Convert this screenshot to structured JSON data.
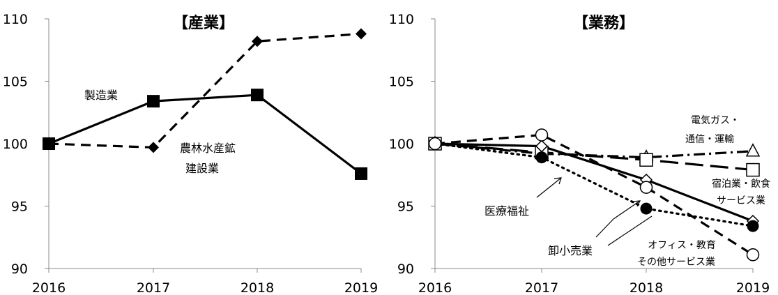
{
  "chart_data": [
    {
      "type": "line",
      "title": "【産業】",
      "categories": [
        "2016",
        "2017",
        "2018",
        "2019"
      ],
      "ylim": [
        90,
        110
      ],
      "yticks": [
        "90",
        "95",
        "100",
        "105",
        "110"
      ],
      "grid": false,
      "series": [
        {
          "name": "製造業",
          "values": [
            100,
            103.4,
            103.9,
            97.6
          ],
          "style": "solid",
          "marker": "square"
        },
        {
          "name": "農林水産鉱",
          "name2": "建設業",
          "values": [
            100,
            99.7,
            108.2,
            108.8
          ],
          "style": "dashed",
          "marker": "diamond"
        }
      ]
    },
    {
      "type": "line",
      "title": "【業務】",
      "categories": [
        "2016",
        "2017",
        "2018",
        "2019"
      ],
      "ylim": [
        90,
        110
      ],
      "yticks": [
        "90",
        "95",
        "100",
        "105",
        "110"
      ],
      "grid": false,
      "series": [
        {
          "name": "電気ガス・",
          "name2": "通信・運輸",
          "values": [
            100,
            99.2,
            98.9,
            99.4
          ],
          "style": "dashdot",
          "marker": "triangle"
        },
        {
          "name": "宿泊業・飲食",
          "name2": "サービス業",
          "values": [
            100,
            99.3,
            98.7,
            97.9
          ],
          "style": "longdash",
          "marker": "square-open"
        },
        {
          "name": "医療福祉",
          "values": [
            100,
            99.8,
            97.1,
            93.8
          ],
          "style": "solid",
          "marker": "diamond-open"
        },
        {
          "name": "卸小売業",
          "values": [
            100,
            98.9,
            94.8,
            93.4
          ],
          "style": "dotted",
          "marker": "circle-filled"
        },
        {
          "name": "オフィス・教育",
          "name2": "その他サービス業",
          "values": [
            100,
            100.7,
            96.5,
            91.1
          ],
          "style": "dashed",
          "marker": "circle-open"
        }
      ]
    }
  ]
}
